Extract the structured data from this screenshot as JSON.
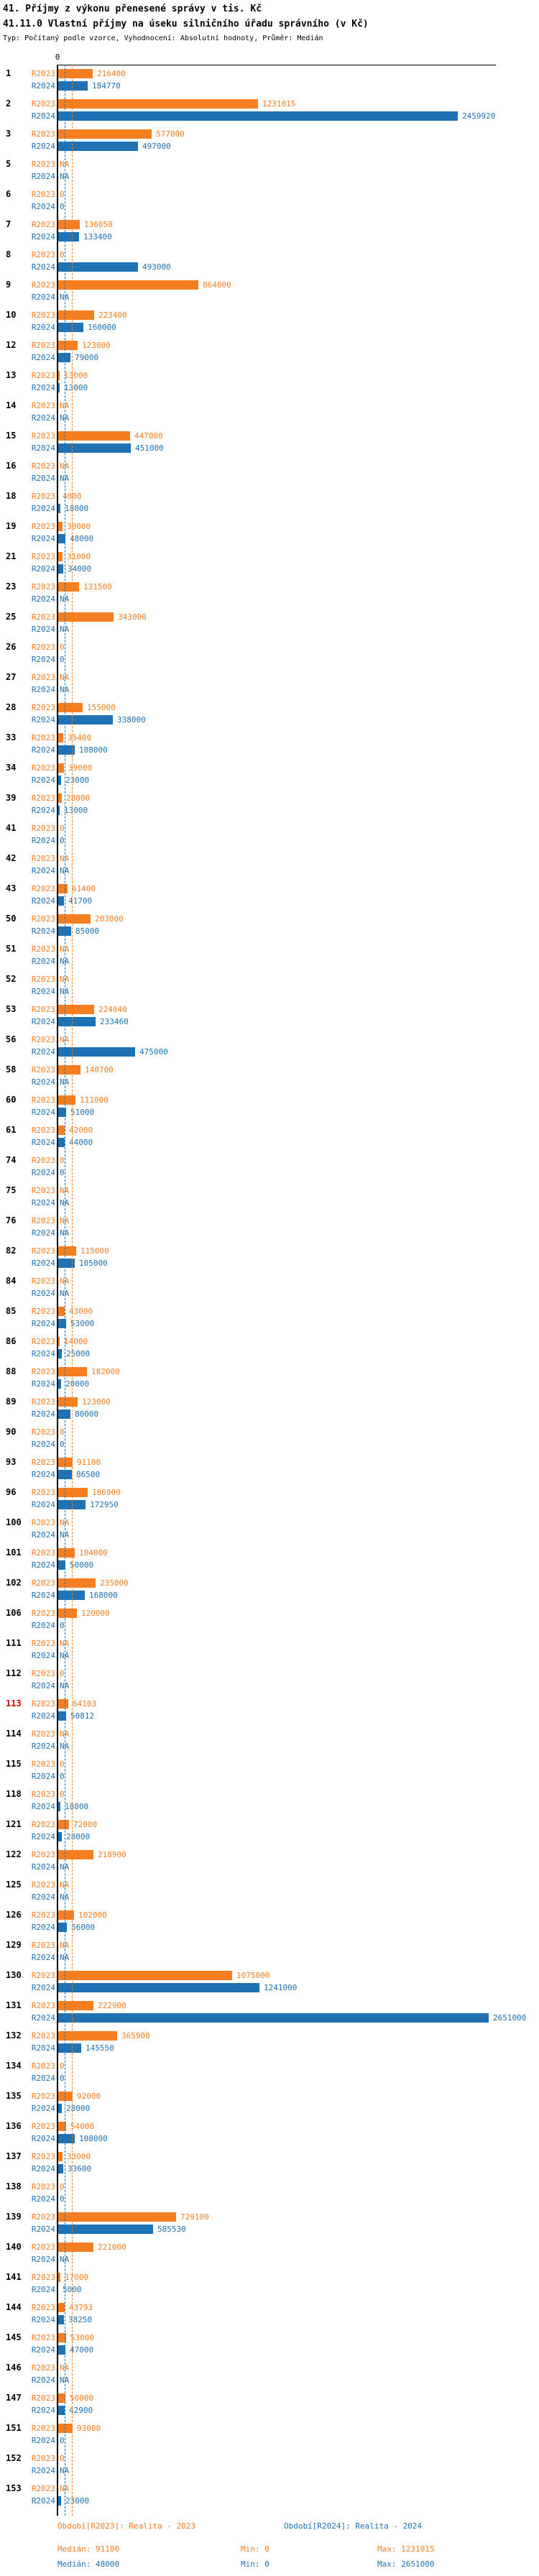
{
  "header": {
    "title": "41. Příjmy z výkonu přenesené správy v tis. Kč",
    "subtitle": "41.11.0 Vlastní příjmy na úseku silničního úřadu správního (v Kč)",
    "meta": "Typ: Počítaný podle vzorce, Vyhodnocení: Absolutní hodnoty, Průměr: Medián"
  },
  "chart_data": {
    "type": "bar",
    "orientation": "horizontal",
    "title": "41. Příjmy z výkonu přenesené správy v tis. Kč",
    "subtitle": "41.11.0 Vlastní příjmy na úseku silničního úřadu správního (v Kč)",
    "xlabel": "",
    "ylabel": "",
    "axis_origin_label": "0",
    "xlim": [
      0,
      2651000
    ],
    "grid": false,
    "legend_position": "bottom",
    "series": [
      {
        "id": "R2023",
        "label": "R2023",
        "color": "#f57e20",
        "median": 91100,
        "min": 0,
        "max": 1231015
      },
      {
        "id": "R2024",
        "label": "R2024",
        "color": "#1f72b4",
        "median": 48000,
        "min": 0,
        "max": 2651000
      }
    ],
    "rows": [
      {
        "id": "1",
        "R2023": "216400",
        "R2024": "184770"
      },
      {
        "id": "2",
        "R2023": "1231015",
        "R2024": "2459920"
      },
      {
        "id": "3",
        "R2023": "577000",
        "R2024": "497000"
      },
      {
        "id": "5",
        "R2023": "NA",
        "R2024": "NA"
      },
      {
        "id": "6",
        "R2023": "0",
        "R2024": "0"
      },
      {
        "id": "7",
        "R2023": "136050",
        "R2024": "133400"
      },
      {
        "id": "8",
        "R2023": "0",
        "R2024": "493000"
      },
      {
        "id": "9",
        "R2023": "864000",
        "R2024": "NA"
      },
      {
        "id": "10",
        "R2023": "223400",
        "R2024": "160000"
      },
      {
        "id": "12",
        "R2023": "123000",
        "R2024": "79000"
      },
      {
        "id": "13",
        "R2023": "13000",
        "R2024": "13000"
      },
      {
        "id": "14",
        "R2023": "NA",
        "R2024": "NA"
      },
      {
        "id": "15",
        "R2023": "447000",
        "R2024": "451000"
      },
      {
        "id": "16",
        "R2023": "NA",
        "R2024": "NA"
      },
      {
        "id": "18",
        "R2023": "4000",
        "R2024": "18000"
      },
      {
        "id": "19",
        "R2023": "30000",
        "R2024": "48000"
      },
      {
        "id": "21",
        "R2023": "31000",
        "R2024": "34000"
      },
      {
        "id": "23",
        "R2023": "131500",
        "R2024": "NA"
      },
      {
        "id": "25",
        "R2023": "343000",
        "R2024": "NA"
      },
      {
        "id": "26",
        "R2023": "0",
        "R2024": "0"
      },
      {
        "id": "27",
        "R2023": "NA",
        "R2024": "NA"
      },
      {
        "id": "28",
        "R2023": "155000",
        "R2024": "338000"
      },
      {
        "id": "33",
        "R2023": "35400",
        "R2024": "108000"
      },
      {
        "id": "34",
        "R2023": "39000",
        "R2024": "23000"
      },
      {
        "id": "39",
        "R2023": "28000",
        "R2024": "13000"
      },
      {
        "id": "41",
        "R2023": "0",
        "R2024": "0"
      },
      {
        "id": "42",
        "R2023": "NA",
        "R2024": "NA"
      },
      {
        "id": "43",
        "R2023": "61400",
        "R2024": "41700"
      },
      {
        "id": "50",
        "R2023": "203000",
        "R2024": "85000"
      },
      {
        "id": "51",
        "R2023": "NA",
        "R2024": "NA"
      },
      {
        "id": "52",
        "R2023": "NA",
        "R2024": "NA"
      },
      {
        "id": "53",
        "R2023": "224040",
        "R2024": "233460"
      },
      {
        "id": "56",
        "R2023": "NA",
        "R2024": "475000"
      },
      {
        "id": "58",
        "R2023": "140700",
        "R2024": "NA"
      },
      {
        "id": "60",
        "R2023": "111000",
        "R2024": "51000"
      },
      {
        "id": "61",
        "R2023": "42000",
        "R2024": "44000"
      },
      {
        "id": "74",
        "R2023": "0",
        "R2024": "0"
      },
      {
        "id": "75",
        "R2023": "NA",
        "R2024": "NA"
      },
      {
        "id": "76",
        "R2023": "NA",
        "R2024": "NA"
      },
      {
        "id": "82",
        "R2023": "115000",
        "R2024": "105000"
      },
      {
        "id": "84",
        "R2023": "NA",
        "R2024": "NA"
      },
      {
        "id": "85",
        "R2023": "43000",
        "R2024": "53000"
      },
      {
        "id": "86",
        "R2023": "14000",
        "R2024": "25000"
      },
      {
        "id": "88",
        "R2023": "182000",
        "R2024": "20000"
      },
      {
        "id": "89",
        "R2023": "123000",
        "R2024": "80000"
      },
      {
        "id": "90",
        "R2023": "0",
        "R2024": "0"
      },
      {
        "id": "93",
        "R2023": "91100",
        "R2024": "86500"
      },
      {
        "id": "96",
        "R2023": "186900",
        "R2024": "172950"
      },
      {
        "id": "100",
        "R2023": "NA",
        "R2024": "NA"
      },
      {
        "id": "101",
        "R2023": "104000",
        "R2024": "50000"
      },
      {
        "id": "102",
        "R2023": "235000",
        "R2024": "168000"
      },
      {
        "id": "106",
        "R2023": "120000",
        "R2024": "0"
      },
      {
        "id": "111",
        "R2023": "NA",
        "R2024": "NA"
      },
      {
        "id": "112",
        "R2023": "0",
        "R2024": "NA"
      },
      {
        "id": "113",
        "R2023": "64103",
        "R2024": "50812",
        "highlight": true
      },
      {
        "id": "114",
        "R2023": "NA",
        "R2024": "NA"
      },
      {
        "id": "115",
        "R2023": "0",
        "R2024": "0"
      },
      {
        "id": "118",
        "R2023": "0",
        "R2024": "18800"
      },
      {
        "id": "121",
        "R2023": "72000",
        "R2024": "28000"
      },
      {
        "id": "122",
        "R2023": "218900",
        "R2024": "NA"
      },
      {
        "id": "125",
        "R2023": "NA",
        "R2024": "NA"
      },
      {
        "id": "126",
        "R2023": "102000",
        "R2024": "56000"
      },
      {
        "id": "129",
        "R2023": "NA",
        "R2024": "NA"
      },
      {
        "id": "130",
        "R2023": "1075000",
        "R2024": "1241000"
      },
      {
        "id": "131",
        "R2023": "222900",
        "R2024": "2651000"
      },
      {
        "id": "132",
        "R2023": "365900",
        "R2024": "145550"
      },
      {
        "id": "134",
        "R2023": "0",
        "R2024": "0"
      },
      {
        "id": "135",
        "R2023": "92000",
        "R2024": "28000"
      },
      {
        "id": "136",
        "R2023": "54000",
        "R2024": "108000"
      },
      {
        "id": "137",
        "R2023": "33000",
        "R2024": "33600"
      },
      {
        "id": "138",
        "R2023": "0",
        "R2024": "0"
      },
      {
        "id": "139",
        "R2023": "729100",
        "R2024": "585530"
      },
      {
        "id": "140",
        "R2023": "221000",
        "R2024": "NA"
      },
      {
        "id": "141",
        "R2023": "17000",
        "R2024": "5000"
      },
      {
        "id": "144",
        "R2023": "43793",
        "R2024": "38250"
      },
      {
        "id": "145",
        "R2023": "53000",
        "R2024": "47000"
      },
      {
        "id": "146",
        "R2023": "NA",
        "R2024": "NA"
      },
      {
        "id": "147",
        "R2023": "50000",
        "R2024": "42900"
      },
      {
        "id": "151",
        "R2023": "93000",
        "R2024": "0"
      },
      {
        "id": "152",
        "R2023": "0",
        "R2024": "NA"
      },
      {
        "id": "153",
        "R2023": "NA",
        "R2024": "23000"
      }
    ]
  },
  "footer": {
    "period_2023": "Období[R2023]: Realita - 2023",
    "period_2024": "Období[R2024]: Realita - 2024",
    "stats_2023": {
      "median": "Medián: 91100",
      "min": "Min: 0",
      "max": "Max: 1231015"
    },
    "stats_2024": {
      "median": "Medián: 48000",
      "min": "Min: 0",
      "max": "Max: 2651000"
    }
  },
  "colors": {
    "series_2023": "#f57e20",
    "series_2024": "#1f72b4",
    "highlight_row_number": "#dd0000",
    "axis": "#000000"
  }
}
